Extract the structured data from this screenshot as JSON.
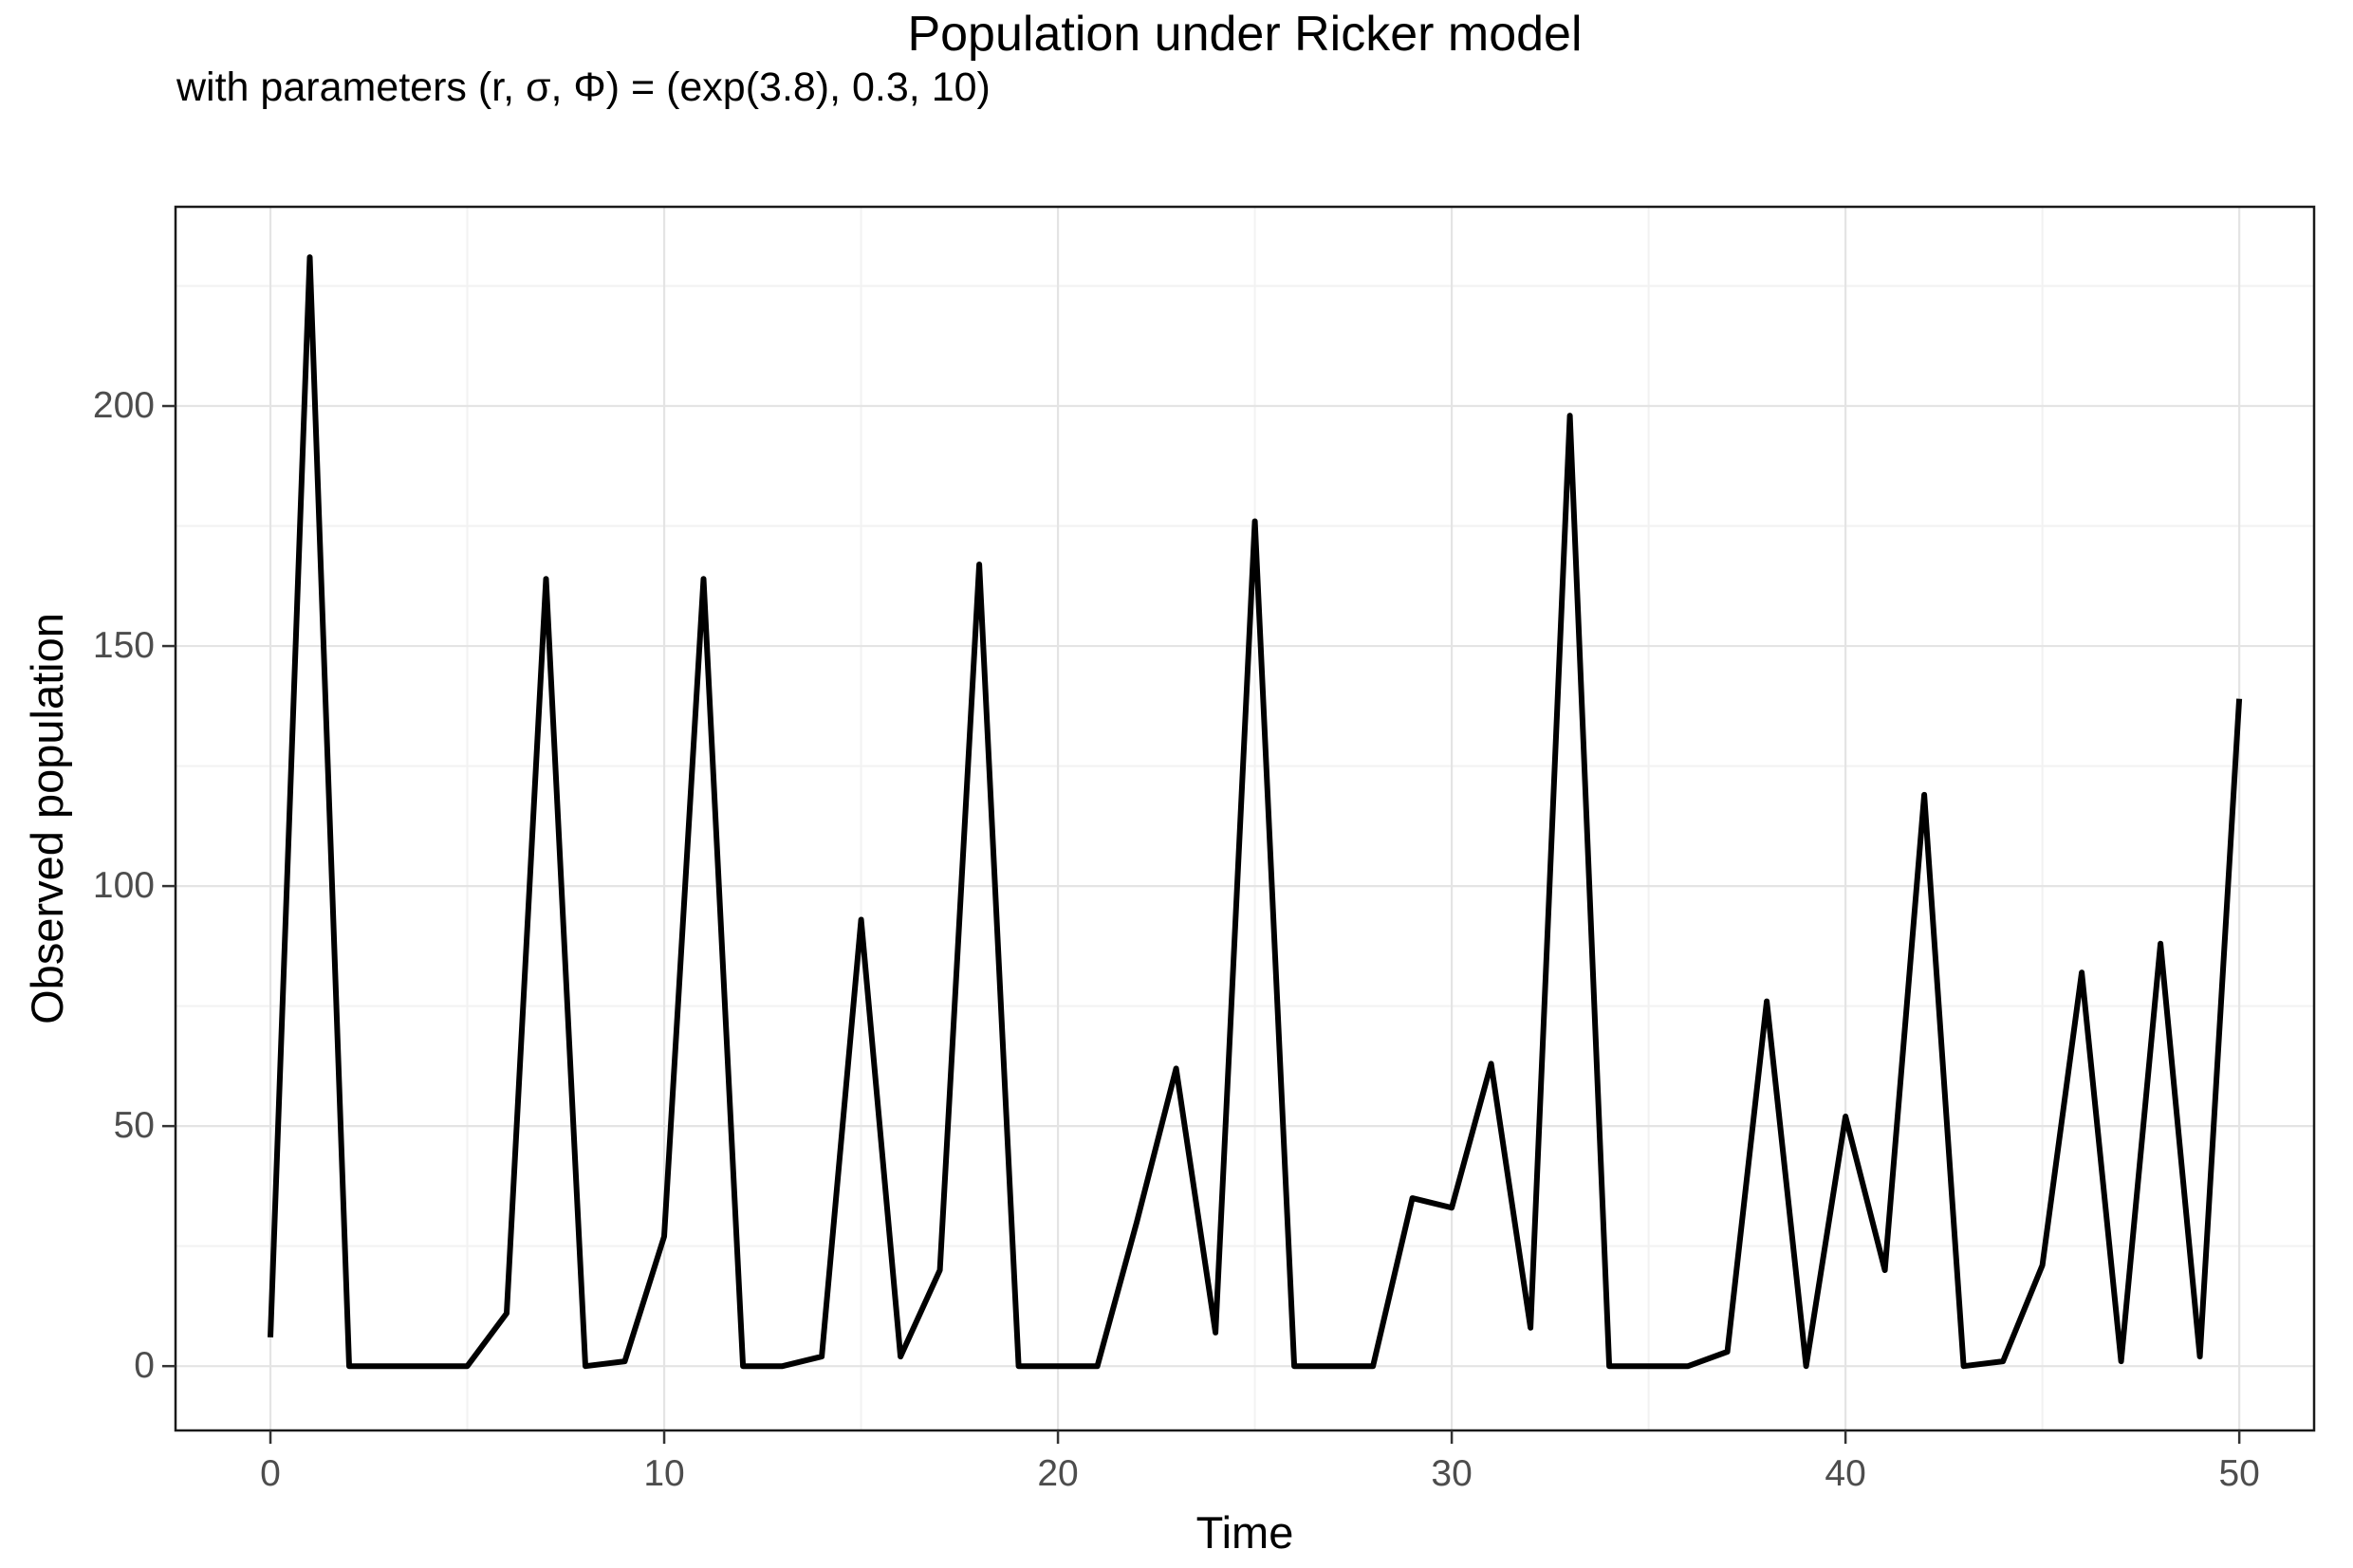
{
  "chart_data": {
    "type": "line",
    "title": "Population under Ricker model",
    "subtitle": "with parameters (r, σ, Φ) = (exp(3.8), 0.3, 10)",
    "xlabel": "Time",
    "ylabel": "Observed population",
    "x": [
      0,
      1,
      2,
      3,
      4,
      5,
      6,
      7,
      8,
      9,
      10,
      11,
      12,
      13,
      14,
      15,
      16,
      17,
      18,
      19,
      20,
      21,
      22,
      23,
      24,
      25,
      26,
      27,
      28,
      29,
      30,
      31,
      32,
      33,
      34,
      35,
      36,
      37,
      38,
      39,
      40,
      41,
      42,
      43,
      44,
      45,
      46,
      47,
      48,
      49,
      50
    ],
    "y": [
      6,
      231,
      0,
      0,
      0,
      0,
      11,
      164,
      0,
      1,
      27,
      164,
      0,
      0,
      2,
      93,
      2,
      20,
      167,
      0,
      0,
      0,
      30,
      62,
      7,
      176,
      0,
      0,
      0,
      35,
      33,
      63,
      8,
      198,
      0,
      0,
      0,
      3,
      76,
      0,
      52,
      20,
      119,
      0,
      1,
      21,
      82,
      1,
      88,
      2,
      139
    ],
    "xlim": [
      -2.41,
      51.9
    ],
    "ylim": [
      -13.4,
      241.5
    ],
    "x_major_ticks": [
      0,
      10,
      20,
      30,
      40,
      50
    ],
    "x_minor_ticks": [
      5,
      15,
      25,
      35,
      45
    ],
    "y_major_ticks": [
      0,
      50,
      100,
      150,
      200
    ],
    "y_minor_ticks": [
      25,
      75,
      125,
      175,
      225
    ],
    "x_tick_labels": [
      "0",
      "10",
      "20",
      "30",
      "40",
      "50"
    ],
    "y_tick_labels": [
      "0",
      "50",
      "100",
      "150",
      "200"
    ],
    "grid": "major+minor",
    "legend": "none",
    "colors": {
      "line": "#000000",
      "panel_background": "#ffffff",
      "panel_border": "#1a1a1a",
      "grid_major": "#e4e4e4",
      "grid_minor": "#f2f2f2",
      "tick_mark": "#333333",
      "tick_label": "#4d4d4d",
      "axis_title": "#000000",
      "title_text": "#000000"
    }
  }
}
